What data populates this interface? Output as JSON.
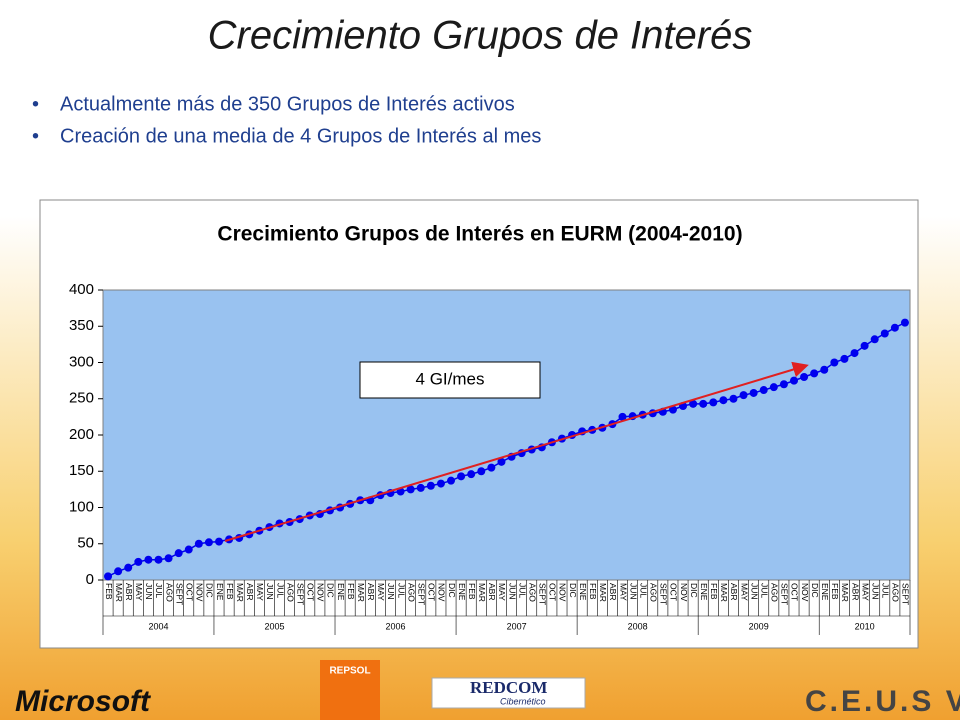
{
  "slide": {
    "title": "Crecimiento Grupos de Interés",
    "bullets": [
      "Actualmente más de 350 Grupos de Interés activos",
      "Creación de una media de 4 Grupos de Interés al mes"
    ],
    "logos": [
      "Microsoft",
      "REPSOL",
      "REDCOM",
      "Cibernético",
      "C.E.U.S VI"
    ]
  },
  "chart_data": {
    "type": "line",
    "title": "Crecimiento Grupos de Interés en EURM (2004-2010)",
    "annotation": "4 GI/mes",
    "groups": [
      {
        "label": "2004",
        "categories": [
          "FEB",
          "MAR",
          "ABR",
          "MAY",
          "JUN",
          "JUL",
          "AGO",
          "SEPT",
          "OCT",
          "NOV",
          "DIC"
        ]
      },
      {
        "label": "2005",
        "categories": [
          "ENE",
          "FEB",
          "MAR",
          "ABR",
          "MAY",
          "JUN",
          "JUL",
          "AGO",
          "SEPT",
          "OCT",
          "NOV",
          "DIC"
        ]
      },
      {
        "label": "2006",
        "categories": [
          "ENE",
          "FEB",
          "MAR",
          "ABR",
          "MAY",
          "JUN",
          "JUL",
          "AGO",
          "SEPT",
          "OCT",
          "NOV",
          "DIC"
        ]
      },
      {
        "label": "2007",
        "categories": [
          "ENE",
          "FEB",
          "MAR",
          "ABR",
          "MAY",
          "JUN",
          "JUL",
          "AGO",
          "SEPT",
          "OCT",
          "NOV",
          "DIC"
        ]
      },
      {
        "label": "2008",
        "categories": [
          "ENE",
          "FEB",
          "MAR",
          "ABR",
          "MAY",
          "JUN",
          "JUL",
          "AGO",
          "SEPT",
          "OCT",
          "NOV",
          "DIC"
        ]
      },
      {
        "label": "2009",
        "categories": [
          "ENE",
          "FEB",
          "MAR",
          "ABR",
          "MAY",
          "JUN",
          "JUL",
          "AGO",
          "SEPT",
          "OCT",
          "NOV",
          "DIC"
        ]
      },
      {
        "label": "2010",
        "categories": [
          "ENE",
          "FEB",
          "MAR",
          "ABR",
          "MAY",
          "JUN",
          "JUL",
          "AGO",
          "SEPT"
        ]
      }
    ],
    "series": [
      {
        "color": "#0000ee",
        "values": [
          5,
          12,
          17,
          25,
          28,
          28,
          30,
          37,
          42,
          50,
          52,
          53,
          56,
          58,
          63,
          68,
          73,
          78,
          80,
          84,
          89,
          91,
          96,
          100,
          105,
          110,
          110,
          117,
          120,
          122,
          125,
          127,
          130,
          133,
          137,
          143,
          146,
          150,
          155,
          163,
          170,
          175,
          180,
          183,
          190,
          195,
          200,
          205,
          207,
          210,
          215,
          225,
          226,
          228,
          230,
          232,
          235,
          240,
          243,
          243,
          245,
          248,
          250,
          255,
          258,
          262,
          266,
          270,
          275,
          280,
          285,
          290,
          300,
          305,
          313,
          323,
          332,
          340,
          348,
          355
        ]
      }
    ],
    "plot_color": "#99c2f0",
    "trend_color": "#e02020",
    "ylim": [
      0,
      400
    ],
    "yticks": [
      0,
      50,
      100,
      150,
      200,
      250,
      300,
      350,
      400
    ]
  }
}
